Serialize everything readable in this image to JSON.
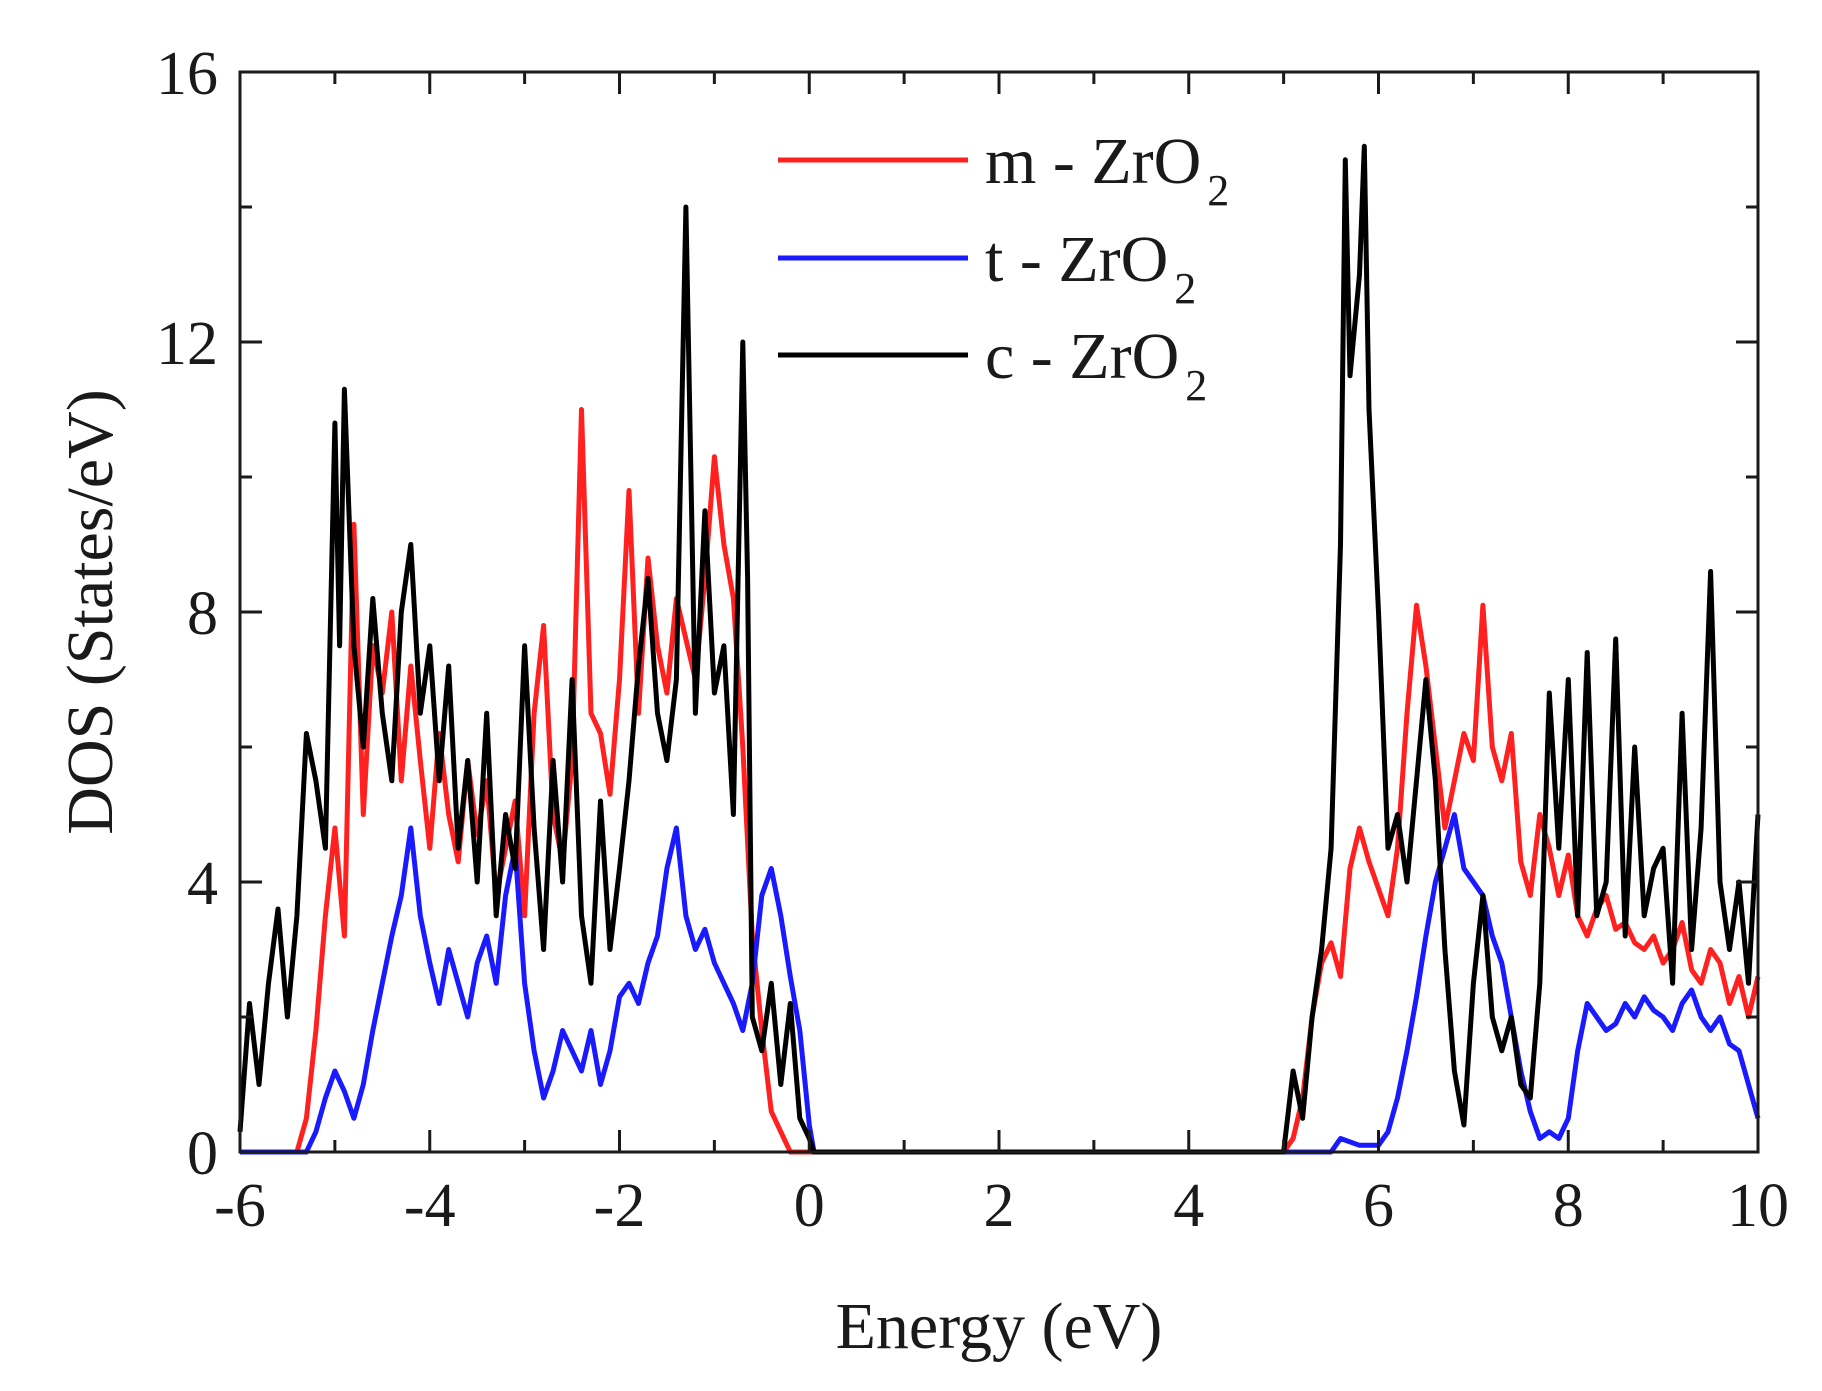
{
  "chart_data": {
    "type": "line",
    "title": "",
    "xlabel": "Energy (eV)",
    "ylabel": "DOS (States/eV)",
    "xlim": [
      -6,
      10
    ],
    "ylim": [
      0,
      16
    ],
    "xticks": [
      -6,
      -4,
      -2,
      0,
      2,
      4,
      6,
      8,
      10
    ],
    "yticks": [
      0,
      4,
      8,
      12,
      16
    ],
    "xtick_labels": [
      "-6",
      "-4",
      "-2",
      "0",
      "2",
      "4",
      "6",
      "8",
      "10"
    ],
    "ytick_labels": [
      "0",
      "4",
      "8",
      "12",
      "16"
    ],
    "grid": false,
    "legend_position": "top-center",
    "series": [
      {
        "name": "m - ZrO2",
        "legend_main": "m - ZrO",
        "legend_sub": "2",
        "color": "#ff2020",
        "x": [
          -6.0,
          -5.4,
          -5.3,
          -5.2,
          -5.1,
          -5.0,
          -4.9,
          -4.8,
          -4.7,
          -4.6,
          -4.5,
          -4.4,
          -4.3,
          -4.2,
          -4.1,
          -4.0,
          -3.9,
          -3.8,
          -3.7,
          -3.6,
          -3.5,
          -3.4,
          -3.3,
          -3.2,
          -3.1,
          -3.0,
          -2.9,
          -2.8,
          -2.7,
          -2.6,
          -2.5,
          -2.4,
          -2.3,
          -2.2,
          -2.1,
          -2.0,
          -1.9,
          -1.8,
          -1.7,
          -1.6,
          -1.5,
          -1.4,
          -1.3,
          -1.2,
          -1.1,
          -1.0,
          -0.9,
          -0.8,
          -0.7,
          -0.6,
          -0.5,
          -0.4,
          -0.3,
          -0.2,
          -0.1,
          0.0,
          0.05,
          5.0,
          5.1,
          5.2,
          5.3,
          5.4,
          5.5,
          5.6,
          5.7,
          5.8,
          5.9,
          6.0,
          6.1,
          6.2,
          6.3,
          6.4,
          6.5,
          6.6,
          6.7,
          6.8,
          6.9,
          7.0,
          7.1,
          7.2,
          7.3,
          7.4,
          7.5,
          7.6,
          7.7,
          7.8,
          7.9,
          8.0,
          8.1,
          8.2,
          8.3,
          8.4,
          8.5,
          8.6,
          8.7,
          8.8,
          8.9,
          9.0,
          9.1,
          9.2,
          9.3,
          9.4,
          9.5,
          9.6,
          9.7,
          9.8,
          9.9,
          10.0
        ],
        "y": [
          0,
          0,
          0.5,
          1.8,
          3.5,
          4.8,
          3.2,
          9.3,
          5.0,
          7.5,
          6.8,
          8.0,
          5.5,
          7.2,
          5.8,
          4.5,
          6.2,
          5.0,
          4.3,
          5.8,
          4.7,
          5.5,
          3.8,
          4.5,
          5.2,
          3.5,
          6.5,
          7.8,
          5.0,
          4.3,
          5.8,
          11.0,
          6.5,
          6.2,
          5.3,
          7.0,
          9.8,
          6.5,
          8.8,
          7.5,
          6.8,
          8.2,
          7.6,
          7.0,
          8.5,
          10.3,
          9.0,
          8.2,
          6.0,
          3.2,
          1.8,
          0.6,
          0.3,
          0,
          0,
          0,
          0,
          0,
          0.2,
          0.8,
          2.0,
          2.8,
          3.1,
          2.6,
          4.2,
          4.8,
          4.3,
          3.9,
          3.5,
          4.5,
          6.5,
          8.1,
          7.2,
          6.0,
          4.8,
          5.5,
          6.2,
          5.8,
          8.1,
          6.0,
          5.5,
          6.2,
          4.3,
          3.8,
          5.0,
          4.5,
          3.8,
          4.4,
          3.5,
          3.2,
          3.6,
          3.8,
          3.3,
          3.4,
          3.1,
          3.0,
          3.2,
          2.8,
          3.0,
          3.4,
          2.7,
          2.5,
          3.0,
          2.8,
          2.2,
          2.6,
          2.0,
          2.6
        ]
      },
      {
        "name": "t - ZrO2",
        "legend_main": "t - ZrO",
        "legend_sub": "2",
        "color": "#1a1aff",
        "x": [
          -6.0,
          -5.4,
          -5.3,
          -5.2,
          -5.1,
          -5.0,
          -4.9,
          -4.8,
          -4.7,
          -4.6,
          -4.5,
          -4.4,
          -4.3,
          -4.2,
          -4.1,
          -4.0,
          -3.9,
          -3.8,
          -3.7,
          -3.6,
          -3.5,
          -3.4,
          -3.3,
          -3.2,
          -3.1,
          -3.0,
          -2.9,
          -2.8,
          -2.7,
          -2.6,
          -2.5,
          -2.4,
          -2.3,
          -2.2,
          -2.1,
          -2.0,
          -1.9,
          -1.8,
          -1.7,
          -1.6,
          -1.5,
          -1.4,
          -1.3,
          -1.2,
          -1.1,
          -1.0,
          -0.9,
          -0.8,
          -0.7,
          -0.6,
          -0.5,
          -0.4,
          -0.3,
          -0.2,
          -0.1,
          0.0,
          0.05,
          5.0,
          5.5,
          5.6,
          5.8,
          6.0,
          6.1,
          6.2,
          6.3,
          6.4,
          6.5,
          6.6,
          6.7,
          6.8,
          6.9,
          7.0,
          7.1,
          7.2,
          7.3,
          7.4,
          7.5,
          7.6,
          7.7,
          7.8,
          7.9,
          8.0,
          8.1,
          8.2,
          8.3,
          8.4,
          8.5,
          8.6,
          8.7,
          8.8,
          8.9,
          9.0,
          9.1,
          9.2,
          9.3,
          9.4,
          9.5,
          9.6,
          9.7,
          9.8,
          9.9,
          10.0
        ],
        "y": [
          0,
          0,
          0,
          0.3,
          0.8,
          1.2,
          0.9,
          0.5,
          1.0,
          1.8,
          2.5,
          3.2,
          3.8,
          4.8,
          3.5,
          2.8,
          2.2,
          3.0,
          2.5,
          2.0,
          2.8,
          3.2,
          2.5,
          3.8,
          4.5,
          2.5,
          1.5,
          0.8,
          1.2,
          1.8,
          1.5,
          1.2,
          1.8,
          1.0,
          1.5,
          2.3,
          2.5,
          2.2,
          2.8,
          3.2,
          4.2,
          4.8,
          3.5,
          3.0,
          3.3,
          2.8,
          2.5,
          2.2,
          1.8,
          2.5,
          3.8,
          4.2,
          3.5,
          2.6,
          1.8,
          0.4,
          0,
          0,
          0,
          0.2,
          0.1,
          0.1,
          0.3,
          0.8,
          1.5,
          2.3,
          3.2,
          4.0,
          4.5,
          5.0,
          4.2,
          4.0,
          3.8,
          3.2,
          2.8,
          2.0,
          1.2,
          0.6,
          0.2,
          0.3,
          0.2,
          0.5,
          1.5,
          2.2,
          2.0,
          1.8,
          1.9,
          2.2,
          2.0,
          2.3,
          2.1,
          2.0,
          1.8,
          2.2,
          2.4,
          2.0,
          1.8,
          2.0,
          1.6,
          1.5,
          1.0,
          0.5
        ]
      },
      {
        "name": "c - ZrO2",
        "legend_main": "c - ZrO",
        "legend_sub": "2",
        "color": "#000000",
        "x": [
          -6.0,
          -5.9,
          -5.8,
          -5.7,
          -5.6,
          -5.5,
          -5.4,
          -5.3,
          -5.2,
          -5.1,
          -5.0,
          -4.95,
          -4.9,
          -4.8,
          -4.7,
          -4.6,
          -4.5,
          -4.4,
          -4.3,
          -4.2,
          -4.1,
          -4.0,
          -3.9,
          -3.8,
          -3.7,
          -3.6,
          -3.5,
          -3.4,
          -3.3,
          -3.2,
          -3.1,
          -3.0,
          -2.9,
          -2.8,
          -2.7,
          -2.6,
          -2.5,
          -2.4,
          -2.3,
          -2.2,
          -2.1,
          -2.0,
          -1.9,
          -1.8,
          -1.7,
          -1.6,
          -1.5,
          -1.4,
          -1.3,
          -1.2,
          -1.1,
          -1.0,
          -0.9,
          -0.8,
          -0.7,
          -0.65,
          -0.6,
          -0.5,
          -0.4,
          -0.3,
          -0.2,
          -0.1,
          0.0,
          0.05,
          5.0,
          5.1,
          5.2,
          5.3,
          5.4,
          5.5,
          5.6,
          5.65,
          5.7,
          5.8,
          5.85,
          5.9,
          6.0,
          6.1,
          6.2,
          6.3,
          6.4,
          6.5,
          6.6,
          6.7,
          6.8,
          6.9,
          7.0,
          7.1,
          7.2,
          7.3,
          7.4,
          7.5,
          7.6,
          7.7,
          7.8,
          7.9,
          8.0,
          8.1,
          8.2,
          8.3,
          8.4,
          8.5,
          8.6,
          8.7,
          8.8,
          8.9,
          9.0,
          9.1,
          9.2,
          9.3,
          9.4,
          9.5,
          9.6,
          9.7,
          9.8,
          9.9,
          10.0
        ],
        "y": [
          0.3,
          2.2,
          1.0,
          2.5,
          3.6,
          2.0,
          3.5,
          6.2,
          5.5,
          4.5,
          10.8,
          7.5,
          11.3,
          7.5,
          6.0,
          8.2,
          6.5,
          5.5,
          8.0,
          9.0,
          6.5,
          7.5,
          5.5,
          7.2,
          4.5,
          5.8,
          4.0,
          6.5,
          3.5,
          5.0,
          4.2,
          7.5,
          4.8,
          3.0,
          5.8,
          4.0,
          7.0,
          3.5,
          2.5,
          5.2,
          3.0,
          4.2,
          5.5,
          7.2,
          8.5,
          6.5,
          5.8,
          7.0,
          14.0,
          6.5,
          9.5,
          6.8,
          7.5,
          5.0,
          12.0,
          8.5,
          2.0,
          1.5,
          2.5,
          1.0,
          2.2,
          0.5,
          0.2,
          0,
          0,
          1.2,
          0.5,
          2.0,
          3.0,
          4.5,
          9.0,
          14.7,
          11.5,
          13.0,
          14.9,
          11.0,
          8.0,
          4.5,
          5.0,
          4.0,
          5.5,
          7.0,
          5.5,
          3.0,
          1.2,
          0.4,
          2.5,
          3.8,
          2.0,
          1.5,
          2.0,
          1.0,
          0.8,
          2.5,
          6.8,
          4.5,
          7.0,
          3.5,
          7.4,
          3.5,
          4.0,
          7.6,
          3.2,
          6.0,
          3.5,
          4.2,
          4.5,
          2.5,
          6.5,
          3.0,
          4.8,
          8.6,
          4.0,
          3.0,
          4.0,
          2.5,
          5.0
        ]
      }
    ]
  }
}
